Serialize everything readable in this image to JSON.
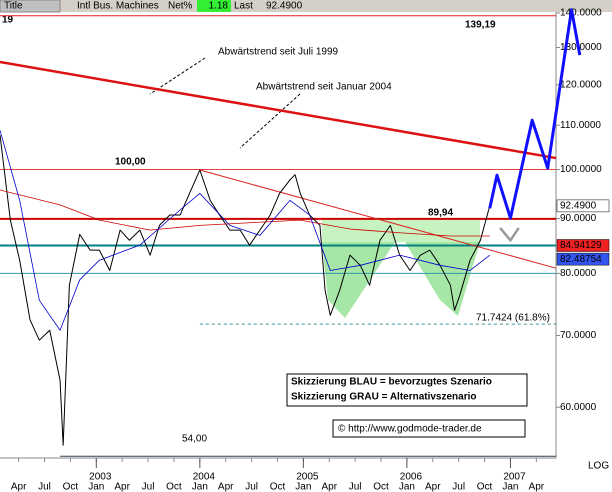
{
  "header": {
    "title_label": "Title",
    "symbol": "Intl Bus. Machines",
    "net_label": "Net%",
    "net_value": "1.18",
    "last_label": "Last",
    "last_value": "92.4900"
  },
  "chart_data": {
    "type": "line",
    "log_scale": true,
    "corner_label": "19",
    "scale_label": "LOG",
    "annotations": [
      "Abwärtstrend seit Juli 1999",
      "Abwärtstrend seit Januar 2004",
      "Skizzierung BLAU = bevorzugtes Szenario",
      "Skizzierung GRAU = Alternativszenario",
      "© http://www.godmode-trader.de"
    ],
    "xlim": [
      2002.07,
      2007.44
    ],
    "ylim": [
      53.8,
      140.3
    ],
    "yticks": [
      {
        "value": 60,
        "label": "60.0000"
      },
      {
        "value": 70,
        "label": "70.0000"
      },
      {
        "value": 80,
        "label": "80.0000"
      },
      {
        "value": 90,
        "label": "90.0000"
      },
      {
        "value": 100,
        "label": "100.0000"
      },
      {
        "value": 110,
        "label": "110.0000"
      },
      {
        "value": 120,
        "label": "120.0000"
      },
      {
        "value": 130,
        "label": "130.0000"
      },
      {
        "value": 140,
        "label": "140.0000"
      }
    ],
    "xticks": [
      {
        "value": 2002.25,
        "label": "Apr"
      },
      {
        "value": 2002.5,
        "label": "Jul"
      },
      {
        "value": 2002.75,
        "label": "Oct"
      },
      {
        "value": 2003,
        "label": "Jan"
      },
      {
        "value": 2003.25,
        "label": "Apr"
      },
      {
        "value": 2003.5,
        "label": "Jul"
      },
      {
        "value": 2003.75,
        "label": "Oct"
      },
      {
        "value": 2004,
        "label": "Jan"
      },
      {
        "value": 2004.25,
        "label": "Apr"
      },
      {
        "value": 2004.5,
        "label": "Jul"
      },
      {
        "value": 2004.75,
        "label": "Oct"
      },
      {
        "value": 2005,
        "label": "Jan"
      },
      {
        "value": 2005.25,
        "label": "Apr"
      },
      {
        "value": 2005.5,
        "label": "Jul"
      },
      {
        "value": 2005.75,
        "label": "Oct"
      },
      {
        "value": 2006,
        "label": "Jan"
      },
      {
        "value": 2006.25,
        "label": "Apr"
      },
      {
        "value": 2006.5,
        "label": "Jul"
      },
      {
        "value": 2006.75,
        "label": "Oct"
      },
      {
        "value": 2007,
        "label": "Jan"
      },
      {
        "value": 2007.25,
        "label": "Apr"
      }
    ],
    "year_ticks": [
      2003,
      2004,
      2005,
      2006,
      2007
    ],
    "levels": [
      {
        "value": 139.19,
        "label": "139,19",
        "color": "#e02020",
        "width": 1
      },
      {
        "value": 100,
        "label": "100,00",
        "color": "#e04040",
        "width": 1
      },
      {
        "value": 89.94,
        "label": "89,94",
        "color": "#cc0000",
        "width": 2
      },
      {
        "value": 84.94129,
        "color": "#008080",
        "width": 2
      },
      {
        "value": 80,
        "color": "#3399aa",
        "width": 1
      },
      {
        "value": 71.7424,
        "label": "71.7424 (61.8%)",
        "color": "#339999",
        "width": 1,
        "dashed": true,
        "x_start": 2004.0
      },
      {
        "value": 54,
        "label": "54,00",
        "color": "#334455",
        "width": 1,
        "x_start": 2002.65
      }
    ],
    "trendlines": [
      {
        "x": [
          2002.07,
          2007.44
        ],
        "values": [
          126.0,
          102.5
        ],
        "color": "#dd1111",
        "width": 2.5
      },
      {
        "x": [
          2004.0,
          2007.44
        ],
        "values": [
          99.9,
          80.9
        ],
        "color": "#dd2222",
        "width": 1
      }
    ],
    "price_tags": [
      {
        "value": 92.49,
        "label": "92.4900",
        "color": "#ffffff"
      },
      {
        "value": 84.94129,
        "label": "84.94129",
        "color": "#ee2222"
      },
      {
        "value": 82.48754,
        "label": "82.48754",
        "color": "#3355ee"
      }
    ],
    "series": [
      {
        "color": "#000000",
        "width": 1,
        "x": [
          2002.07,
          2002.17,
          2002.26,
          2002.36,
          2002.45,
          2002.55,
          2002.65,
          2002.68,
          2002.74,
          2002.84,
          2002.94,
          2003.03,
          2003.13,
          2003.23,
          2003.32,
          2003.42,
          2003.52,
          2003.61,
          2003.71,
          2003.81,
          2003.9,
          2004.0,
          2004.1,
          2004.19,
          2004.29,
          2004.39,
          2004.48,
          2004.58,
          2004.68,
          2004.77,
          2004.87,
          2004.92,
          2004.97,
          2005.06,
          2005.16,
          2005.21,
          2005.26,
          2005.35,
          2005.45,
          2005.55,
          2005.64,
          2005.74,
          2005.84,
          2005.93,
          2006.03,
          2006.13,
          2006.22,
          2006.32,
          2006.42,
          2006.46,
          2006.51,
          2006.61,
          2006.71,
          2006.8
        ],
        "values": [
          107.7,
          89.7,
          82.3,
          72.4,
          69.3,
          70.8,
          63.6,
          55.3,
          78.0,
          87.0,
          84.1,
          84.1,
          80.5,
          87.8,
          85.9,
          87.8,
          83.2,
          88.7,
          90.7,
          90.7,
          95.0,
          99.9,
          93.6,
          90.7,
          87.8,
          87.8,
          85.0,
          87.8,
          90.7,
          95.0,
          97.8,
          98.9,
          95.0,
          90.7,
          88.7,
          77.1,
          73.1,
          77.1,
          83.2,
          81.4,
          78.0,
          85.9,
          88.7,
          83.2,
          80.5,
          83.2,
          84.1,
          81.4,
          78.0,
          73.9,
          76.3,
          82.3,
          85.9,
          92.49
        ]
      },
      {
        "color": "#cc0000",
        "width": 0.8,
        "x": [
          2002.07,
          2002.65,
          2003.03,
          2003.52,
          2004.0,
          2004.48,
          2004.97,
          2005.45,
          2005.93,
          2006.42,
          2006.8
        ],
        "values": [
          95.7,
          92.7,
          89.7,
          87.8,
          88.7,
          89.2,
          89.7,
          88.0,
          87.3,
          86.7,
          86.7
        ]
      },
      {
        "color": "#0000cc",
        "width": 0.8,
        "x": [
          2002.07,
          2002.26,
          2002.45,
          2002.65,
          2002.84,
          2003.03,
          2003.42,
          2003.81,
          2004.0,
          2004.29,
          2004.58,
          2004.87,
          2005.06,
          2005.26,
          2005.55,
          2005.93,
          2006.32,
          2006.61,
          2006.8
        ],
        "values": [
          108.8,
          93.6,
          75.5,
          70.8,
          78.9,
          82.3,
          85.0,
          91.7,
          95.0,
          88.7,
          86.8,
          93.6,
          90.7,
          80.5,
          81.4,
          83.2,
          81.4,
          80.5,
          83.2
        ]
      },
      {
        "color": "#1010ff",
        "width": 3,
        "x": [
          2006.8,
          2006.87,
          2007.0,
          2007.21,
          2007.36,
          2007.59,
          2007.67
        ],
        "values": [
          92.0,
          98.8,
          90.1,
          111.2,
          100.3,
          141.0,
          127.9
        ]
      },
      {
        "color": "#999999",
        "width": 2.5,
        "x": [
          2006.9,
          2007.0,
          2007.08
        ],
        "values": [
          88.2,
          85.9,
          88.2
        ]
      }
    ]
  }
}
